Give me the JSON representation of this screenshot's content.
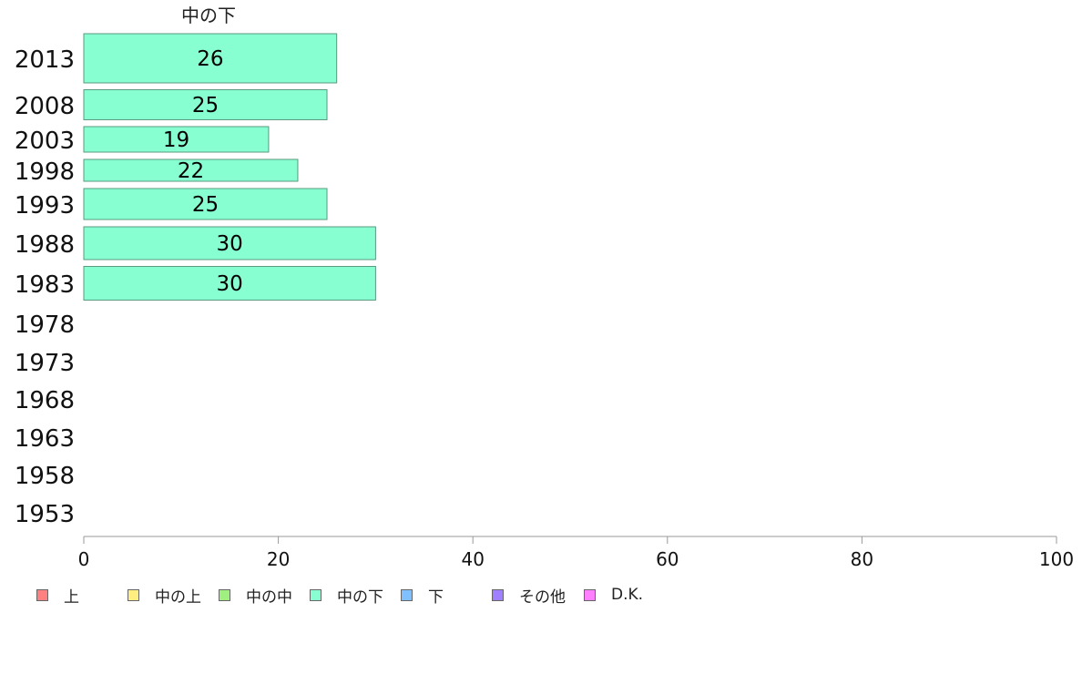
{
  "chart_data": {
    "type": "bar",
    "orientation": "horizontal",
    "stacked": true,
    "categories": [
      "2013",
      "2008",
      "2003",
      "1998",
      "1993",
      "1988",
      "1983",
      "1978",
      "1973",
      "1968",
      "1963",
      "1958",
      "1953"
    ],
    "series": [
      {
        "name": "上",
        "color": "#ff8080",
        "values": [
          null,
          null,
          null,
          null,
          null,
          null,
          null,
          null,
          null,
          null,
          null,
          null,
          null
        ]
      },
      {
        "name": "中の上",
        "color": "#ffee80",
        "values": [
          null,
          null,
          null,
          null,
          null,
          null,
          null,
          null,
          null,
          null,
          null,
          null,
          null
        ]
      },
      {
        "name": "中の中",
        "color": "#a0f080",
        "values": [
          null,
          null,
          null,
          null,
          null,
          null,
          null,
          null,
          null,
          null,
          null,
          null,
          null
        ]
      },
      {
        "name": "中の下",
        "color": "#88ffd0",
        "values": [
          26,
          25,
          19,
          22,
          25,
          30,
          30,
          null,
          null,
          null,
          null,
          null,
          null
        ]
      },
      {
        "name": "下",
        "color": "#80c0ff",
        "values": [
          null,
          null,
          null,
          null,
          null,
          null,
          null,
          null,
          null,
          null,
          null,
          null,
          null
        ]
      },
      {
        "name": "その他",
        "color": "#a080ff",
        "values": [
          null,
          null,
          null,
          null,
          null,
          null,
          null,
          null,
          null,
          null,
          null,
          null,
          null
        ]
      },
      {
        "name": "D.K.",
        "color": "#ff80ff",
        "values": [
          null,
          null,
          null,
          null,
          null,
          null,
          null,
          null,
          null,
          null,
          null,
          null,
          null
        ]
      }
    ],
    "column_header": "中の下",
    "xlim": [
      0,
      100
    ],
    "xticks": [
      0,
      20,
      40,
      60,
      80,
      100
    ],
    "grid": false,
    "legend_position": "bottom"
  }
}
